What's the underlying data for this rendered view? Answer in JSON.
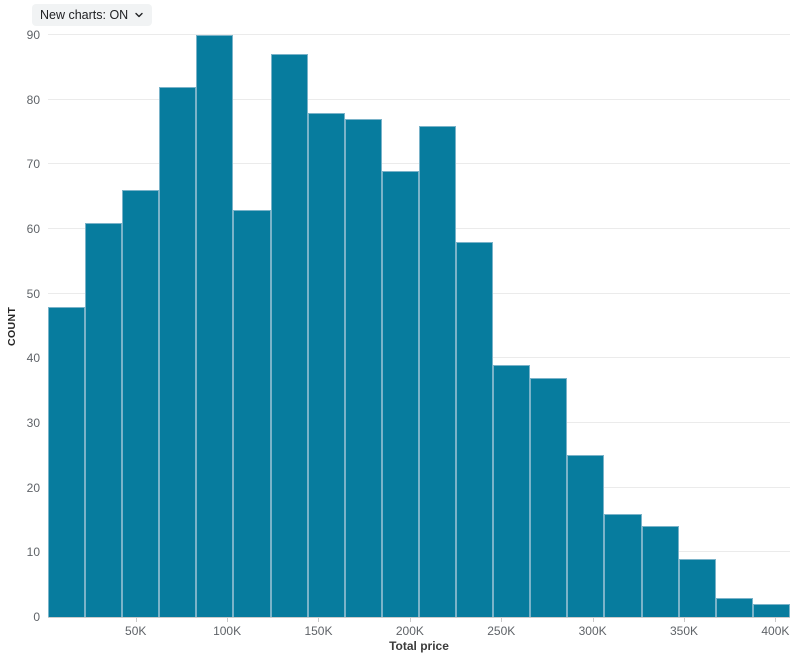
{
  "controls": {
    "new_charts": {
      "label": "New charts: ON",
      "chevron_icon": "chevron-down"
    }
  },
  "chart_data": {
    "type": "bar",
    "subtype": "histogram",
    "title": "",
    "xlabel": "Total price",
    "ylabel": "COUNT",
    "bin_count": 20,
    "values": [
      48,
      61,
      66,
      82,
      90,
      63,
      87,
      78,
      77,
      69,
      76,
      58,
      39,
      37,
      25,
      16,
      14,
      9,
      3,
      2
    ],
    "xlim_k": [
      2,
      408
    ],
    "x_ticks": [
      {
        "value_k": 50,
        "label": "50K"
      },
      {
        "value_k": 100,
        "label": "100K"
      },
      {
        "value_k": 150,
        "label": "150K"
      },
      {
        "value_k": 200,
        "label": "200K"
      },
      {
        "value_k": 250,
        "label": "250K"
      },
      {
        "value_k": 300,
        "label": "300K"
      },
      {
        "value_k": 350,
        "label": "350K"
      },
      {
        "value_k": 400,
        "label": "400K"
      }
    ],
    "y_ticks": [
      0,
      10,
      20,
      30,
      40,
      50,
      60,
      70,
      80,
      90
    ],
    "ylim": [
      0,
      90
    ],
    "grid": "horizontal",
    "legend": "none",
    "colors": {
      "bar_fill": "#077c9e",
      "bar_border": "#7ab3c9",
      "gridline": "#ebebeb",
      "axis_line": "#cccccc",
      "tick_label": "#5f6368",
      "axis_title": "#3c3c3c",
      "background": "#ffffff",
      "control_bg": "#f1f3f4",
      "control_text": "#202124"
    }
  }
}
